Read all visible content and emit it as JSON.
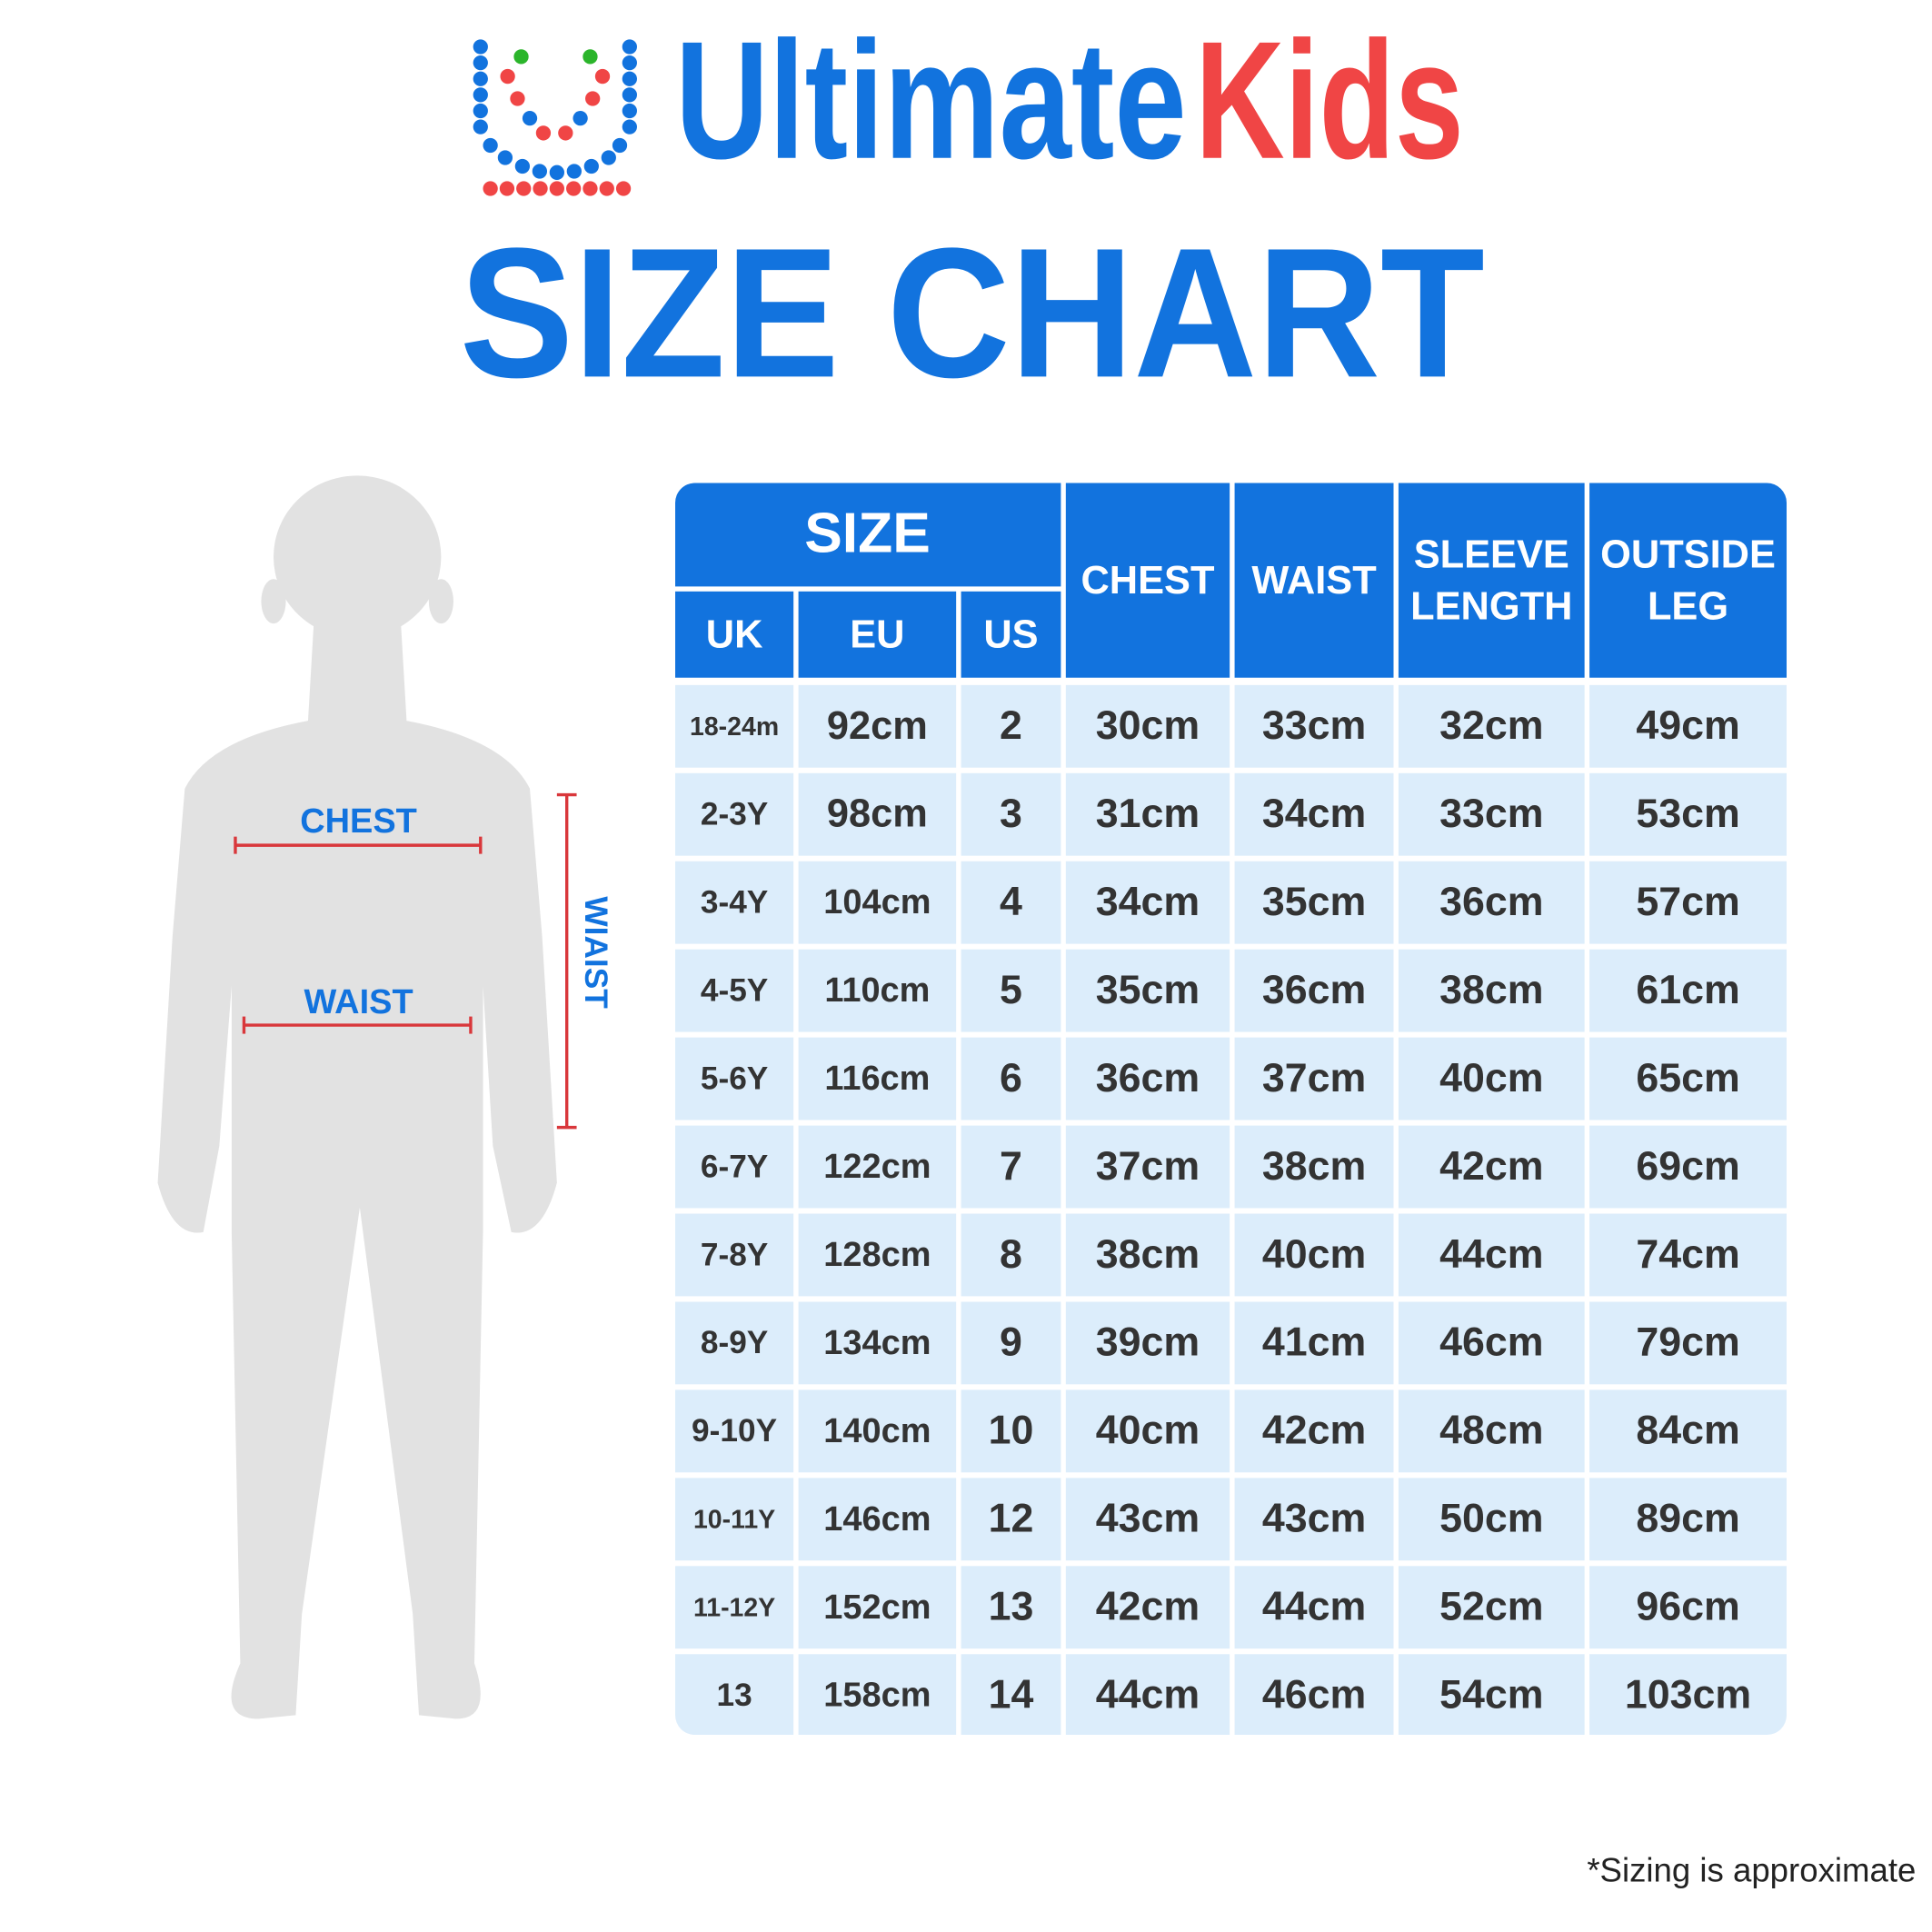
{
  "logo": {
    "brand_primary": "Ultimate",
    "brand_accent": "Kids"
  },
  "title": "SIZE CHART",
  "figure": {
    "chest_label": "CHEST",
    "waist_label": "WAIST",
    "height_label": "WIAIST"
  },
  "table": {
    "group_header": "SIZE",
    "size_headers": [
      "UK",
      "EU",
      "US"
    ],
    "measure_headers": [
      [
        "CHEST"
      ],
      [
        "WAIST"
      ],
      [
        "SLEEVE",
        "LENGTH"
      ],
      [
        "OUTSIDE",
        "LEG"
      ]
    ],
    "rows": [
      [
        "18-24m",
        "92cm",
        "2",
        "30cm",
        "33cm",
        "32cm",
        "49cm"
      ],
      [
        "2-3Y",
        "98cm",
        "3",
        "31cm",
        "34cm",
        "33cm",
        "53cm"
      ],
      [
        "3-4Y",
        "104cm",
        "4",
        "34cm",
        "35cm",
        "36cm",
        "57cm"
      ],
      [
        "4-5Y",
        "110cm",
        "5",
        "35cm",
        "36cm",
        "38cm",
        "61cm"
      ],
      [
        "5-6Y",
        "116cm",
        "6",
        "36cm",
        "37cm",
        "40cm",
        "65cm"
      ],
      [
        "6-7Y",
        "122cm",
        "7",
        "37cm",
        "38cm",
        "42cm",
        "69cm"
      ],
      [
        "7-8Y",
        "128cm",
        "8",
        "38cm",
        "40cm",
        "44cm",
        "74cm"
      ],
      [
        "8-9Y",
        "134cm",
        "9",
        "39cm",
        "41cm",
        "46cm",
        "79cm"
      ],
      [
        "9-10Y",
        "140cm",
        "10",
        "40cm",
        "42cm",
        "48cm",
        "84cm"
      ],
      [
        "10-11Y",
        "146cm",
        "12",
        "43cm",
        "43cm",
        "50cm",
        "89cm"
      ],
      [
        "11-12Y",
        "152cm",
        "13",
        "42cm",
        "44cm",
        "52cm",
        "96cm"
      ],
      [
        "13",
        "158cm",
        "14",
        "44cm",
        "46cm",
        "54cm",
        "103cm"
      ]
    ]
  },
  "footnote": "*Sizing is approximate"
}
